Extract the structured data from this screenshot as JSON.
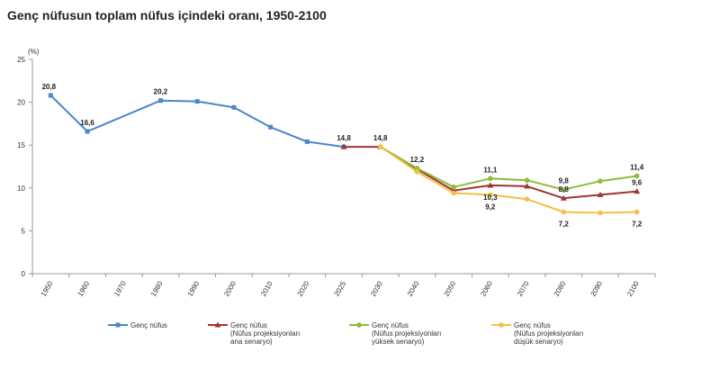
{
  "chart_data": {
    "type": "line",
    "title": "Genç nüfusun toplam nüfus içindeki oranı, 1950-2100",
    "ylabel": "(%)",
    "xlabel": "",
    "ylim": [
      0,
      25
    ],
    "yticks": [
      0,
      5,
      10,
      15,
      20,
      25
    ],
    "categories": [
      "1950",
      "1960",
      "1970",
      "1980",
      "1990",
      "2000",
      "2010",
      "2020",
      "2025",
      "2030",
      "2040",
      "2050",
      "2060",
      "2070",
      "2080",
      "2090",
      "2100"
    ],
    "grid": false,
    "legend_position": "bottom",
    "series": [
      {
        "name": "Genç nüfus",
        "color": "#4a86c8",
        "marker": "square",
        "values": [
          20.8,
          16.6,
          null,
          20.2,
          20.1,
          19.4,
          17.1,
          15.4,
          14.8,
          null,
          null,
          null,
          null,
          null,
          null,
          null,
          null
        ],
        "interpolate_gaps": true,
        "labels": {
          "0": "20,8",
          "1": "16,6",
          "3": "20,2",
          "8": "14,8"
        }
      },
      {
        "name": "Genç nüfus\n(Nüfus projeksiyonları\nana senaryo)",
        "color": "#a03333",
        "marker": "triangle",
        "values": [
          null,
          null,
          null,
          null,
          null,
          null,
          null,
          null,
          14.8,
          14.8,
          12.2,
          9.7,
          10.3,
          10.2,
          8.8,
          9.2,
          9.6
        ],
        "labels": {
          "9": "14,8",
          "10": "12,2",
          "12": "10,3",
          "14": "8,8",
          "16": "9,6"
        }
      },
      {
        "name": "Genç nüfus\n(Nüfus projeksiyonları\nyüksek senaryo)",
        "color": "#8fbb3a",
        "marker": "circle",
        "values": [
          null,
          null,
          null,
          null,
          null,
          null,
          null,
          null,
          null,
          14.8,
          12.3,
          10.1,
          11.1,
          10.9,
          9.8,
          10.8,
          11.4
        ],
        "labels": {
          "12": "11,1",
          "14": "9,8",
          "16": "11,4"
        }
      },
      {
        "name": "Genç nüfus\n(Nüfus projeksiyonları\ndüşük senaryo)",
        "color": "#f2c04b",
        "marker": "circle",
        "values": [
          null,
          null,
          null,
          null,
          null,
          null,
          null,
          null,
          null,
          14.8,
          11.9,
          9.4,
          9.2,
          8.7,
          7.2,
          7.1,
          7.2
        ],
        "labels": {
          "12": "9,2",
          "14": "7,2",
          "16": "7,2"
        }
      }
    ]
  }
}
